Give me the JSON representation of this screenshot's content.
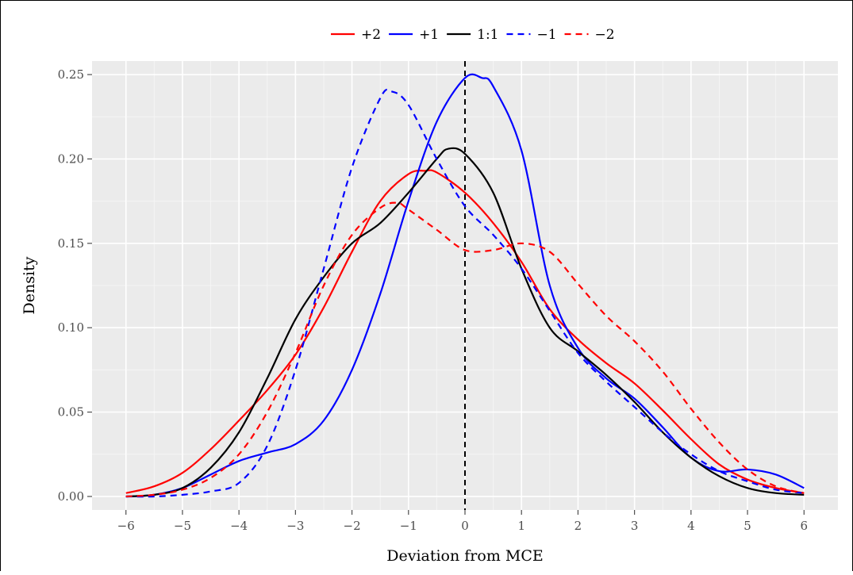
{
  "chart_data": {
    "type": "line",
    "title": "",
    "xlabel": "Deviation from MCE",
    "ylabel": "Density",
    "xlim": [
      -6.6,
      6.6
    ],
    "ylim": [
      -0.008,
      0.258
    ],
    "x_ticks": [
      -6,
      -5,
      -4,
      -3,
      -2,
      -1,
      0,
      1,
      2,
      3,
      4,
      5,
      6
    ],
    "x_tick_labels": [
      "−6",
      "−5",
      "−4",
      "−3",
      "−2",
      "−1",
      "0",
      "1",
      "2",
      "3",
      "4",
      "5",
      "6"
    ],
    "y_ticks": [
      0.0,
      0.05,
      0.1,
      0.15,
      0.2,
      0.25
    ],
    "y_tick_labels": [
      "0.00",
      "0.05",
      "0.10",
      "0.15",
      "0.20",
      "0.25"
    ],
    "grid": true,
    "legend_position": "top",
    "reference_line": {
      "x": 0,
      "style": "dashed",
      "color": "#000000"
    },
    "series": [
      {
        "name": "+2",
        "color": "#ff0000",
        "dash": "solid",
        "points": [
          [
            -6,
            0.002
          ],
          [
            -5.5,
            0.006
          ],
          [
            -5,
            0.014
          ],
          [
            -4.5,
            0.028
          ],
          [
            -4,
            0.045
          ],
          [
            -3.5,
            0.063
          ],
          [
            -3,
            0.084
          ],
          [
            -2.5,
            0.112
          ],
          [
            -2,
            0.145
          ],
          [
            -1.5,
            0.175
          ],
          [
            -1,
            0.191
          ],
          [
            -0.7,
            0.193
          ],
          [
            -0.5,
            0.192
          ],
          [
            0,
            0.18
          ],
          [
            0.5,
            0.162
          ],
          [
            1,
            0.139
          ],
          [
            1.5,
            0.111
          ],
          [
            2,
            0.093
          ],
          [
            2.5,
            0.079
          ],
          [
            3,
            0.067
          ],
          [
            3.5,
            0.051
          ],
          [
            4,
            0.034
          ],
          [
            4.5,
            0.019
          ],
          [
            5,
            0.01
          ],
          [
            5.5,
            0.005
          ],
          [
            6,
            0.002
          ]
        ]
      },
      {
        "name": "+1",
        "color": "#0000ff",
        "dash": "solid",
        "points": [
          [
            -6,
            0.0
          ],
          [
            -5.5,
            0.001
          ],
          [
            -5,
            0.005
          ],
          [
            -4.5,
            0.013
          ],
          [
            -4,
            0.021
          ],
          [
            -3.5,
            0.026
          ],
          [
            -3,
            0.031
          ],
          [
            -2.5,
            0.045
          ],
          [
            -2,
            0.075
          ],
          [
            -1.5,
            0.12
          ],
          [
            -1,
            0.175
          ],
          [
            -0.5,
            0.222
          ],
          [
            0,
            0.248
          ],
          [
            0.3,
            0.248
          ],
          [
            0.5,
            0.243
          ],
          [
            1,
            0.205
          ],
          [
            1.5,
            0.125
          ],
          [
            2,
            0.088
          ],
          [
            2.5,
            0.07
          ],
          [
            3,
            0.058
          ],
          [
            3.5,
            0.041
          ],
          [
            4,
            0.023
          ],
          [
            4.5,
            0.015
          ],
          [
            5,
            0.016
          ],
          [
            5.5,
            0.013
          ],
          [
            6,
            0.005
          ]
        ]
      },
      {
        "name": "1:1",
        "color": "#000000",
        "dash": "solid",
        "points": [
          [
            -6,
            0.0
          ],
          [
            -5.5,
            0.001
          ],
          [
            -5,
            0.005
          ],
          [
            -4.5,
            0.017
          ],
          [
            -4,
            0.038
          ],
          [
            -3.5,
            0.07
          ],
          [
            -3,
            0.105
          ],
          [
            -2.5,
            0.13
          ],
          [
            -2,
            0.15
          ],
          [
            -1.5,
            0.162
          ],
          [
            -1,
            0.18
          ],
          [
            -0.5,
            0.2
          ],
          [
            -0.3,
            0.206
          ],
          [
            0,
            0.203
          ],
          [
            0.5,
            0.18
          ],
          [
            1,
            0.135
          ],
          [
            1.5,
            0.1
          ],
          [
            2,
            0.086
          ],
          [
            2.5,
            0.072
          ],
          [
            3,
            0.056
          ],
          [
            3.5,
            0.038
          ],
          [
            4,
            0.023
          ],
          [
            4.5,
            0.012
          ],
          [
            5,
            0.005
          ],
          [
            5.5,
            0.002
          ],
          [
            6,
            0.001
          ]
        ]
      },
      {
        "name": "−1",
        "color": "#0000ff",
        "dash": "dashed",
        "points": [
          [
            -6,
            0.0
          ],
          [
            -5.5,
            0.0
          ],
          [
            -5,
            0.001
          ],
          [
            -4.5,
            0.003
          ],
          [
            -4,
            0.008
          ],
          [
            -3.5,
            0.03
          ],
          [
            -3,
            0.075
          ],
          [
            -2.5,
            0.135
          ],
          [
            -2,
            0.195
          ],
          [
            -1.5,
            0.236
          ],
          [
            -1.3,
            0.24
          ],
          [
            -1,
            0.232
          ],
          [
            -0.5,
            0.2
          ],
          [
            0,
            0.172
          ],
          [
            0.5,
            0.155
          ],
          [
            1,
            0.135
          ],
          [
            1.5,
            0.11
          ],
          [
            2,
            0.085
          ],
          [
            2.5,
            0.068
          ],
          [
            3,
            0.053
          ],
          [
            3.5,
            0.038
          ],
          [
            4,
            0.025
          ],
          [
            4.5,
            0.015
          ],
          [
            5,
            0.009
          ],
          [
            5.5,
            0.004
          ],
          [
            6,
            0.002
          ]
        ]
      },
      {
        "name": "−2",
        "color": "#ff0000",
        "dash": "dashed",
        "points": [
          [
            -6,
            0.0
          ],
          [
            -5.5,
            0.001
          ],
          [
            -5,
            0.004
          ],
          [
            -4.5,
            0.011
          ],
          [
            -4,
            0.025
          ],
          [
            -3.5,
            0.05
          ],
          [
            -3,
            0.085
          ],
          [
            -2.5,
            0.125
          ],
          [
            -2,
            0.155
          ],
          [
            -1.5,
            0.171
          ],
          [
            -1.2,
            0.174
          ],
          [
            -1,
            0.17
          ],
          [
            -0.5,
            0.158
          ],
          [
            0,
            0.146
          ],
          [
            0.5,
            0.146
          ],
          [
            1,
            0.15
          ],
          [
            1.5,
            0.145
          ],
          [
            2,
            0.126
          ],
          [
            2.5,
            0.107
          ],
          [
            3,
            0.092
          ],
          [
            3.5,
            0.074
          ],
          [
            4,
            0.052
          ],
          [
            4.5,
            0.032
          ],
          [
            5,
            0.016
          ],
          [
            5.5,
            0.006
          ],
          [
            6,
            0.002
          ]
        ]
      }
    ]
  }
}
